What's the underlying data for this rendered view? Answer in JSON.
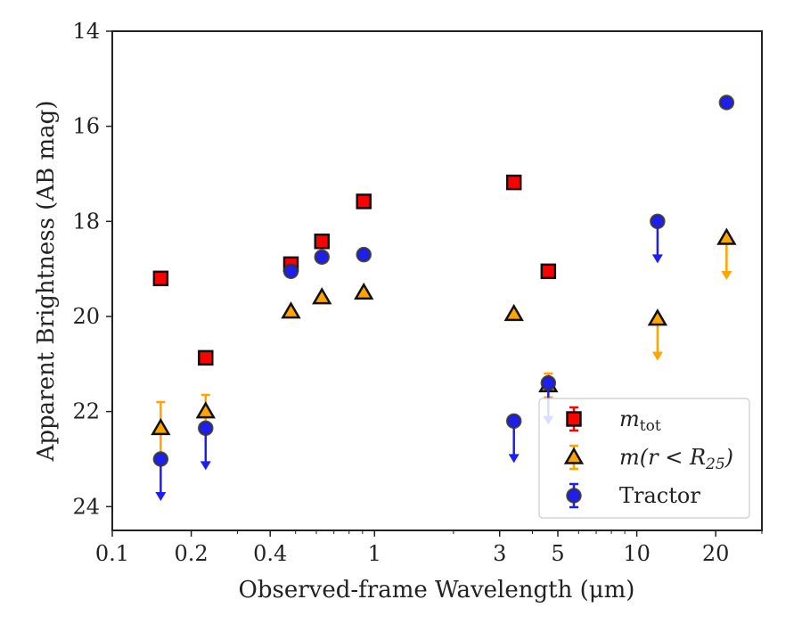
{
  "chart_data": {
    "type": "scatter",
    "title": "",
    "xlabel": "Observed-frame Wavelength (μm)",
    "ylabel": "Apparent Brightness (AB mag)",
    "xscale": "log",
    "xlim": [
      0.1,
      30
    ],
    "ylim": [
      24.5,
      14
    ],
    "y_inverted": true,
    "grid": false,
    "legend_position": "lower-right",
    "x_ticks": [
      {
        "value": 0.1,
        "label": "0.1"
      },
      {
        "value": 0.2,
        "label": "0.2"
      },
      {
        "value": 0.4,
        "label": "0.4"
      },
      {
        "value": 1,
        "label": "1"
      },
      {
        "value": 3,
        "label": "3"
      },
      {
        "value": 5,
        "label": "5"
      },
      {
        "value": 10,
        "label": "10"
      },
      {
        "value": 20,
        "label": "20"
      }
    ],
    "y_ticks": [
      {
        "value": 14,
        "label": "14"
      },
      {
        "value": 16,
        "label": "16"
      },
      {
        "value": 18,
        "label": "18"
      },
      {
        "value": 20,
        "label": "20"
      },
      {
        "value": 22,
        "label": "22"
      },
      {
        "value": 24,
        "label": "24"
      }
    ],
    "series": [
      {
        "name": "m_tot",
        "legend_label": "m",
        "legend_sub": "tot",
        "marker": "square",
        "color": "#ff0000",
        "points": [
          {
            "x": 0.153,
            "y": 19.2
          },
          {
            "x": 0.227,
            "y": 20.87
          },
          {
            "x": 0.48,
            "y": 18.9
          },
          {
            "x": 0.63,
            "y": 18.42
          },
          {
            "x": 0.91,
            "y": 17.58
          },
          {
            "x": 3.4,
            "y": 17.18
          },
          {
            "x": 4.6,
            "y": 19.05
          }
        ]
      },
      {
        "name": "m(r<R25)",
        "legend_label": "m(r < R",
        "legend_sub": "25",
        "legend_close": ")",
        "marker": "triangle",
        "color": "#ffa500",
        "points": [
          {
            "x": 0.153,
            "y": 22.35,
            "err": 0.55
          },
          {
            "x": 0.227,
            "y": 22.0,
            "err": 0.35
          },
          {
            "x": 0.48,
            "y": 19.9
          },
          {
            "x": 0.63,
            "y": 19.6
          },
          {
            "x": 0.91,
            "y": 19.5
          },
          {
            "x": 3.4,
            "y": 19.95
          },
          {
            "x": 4.6,
            "y": 21.45,
            "err": 0.25
          },
          {
            "x": 12.0,
            "y": 20.05,
            "upper_limit": true
          },
          {
            "x": 22.0,
            "y": 18.35,
            "upper_limit": true
          }
        ]
      },
      {
        "name": "Tractor",
        "legend_label": "Tractor",
        "marker": "circle",
        "color": "#1e1ef0",
        "points": [
          {
            "x": 0.153,
            "y": 23.0,
            "upper_limit": true
          },
          {
            "x": 0.227,
            "y": 22.35,
            "upper_limit": true
          },
          {
            "x": 0.48,
            "y": 19.05
          },
          {
            "x": 0.63,
            "y": 18.75
          },
          {
            "x": 0.91,
            "y": 18.7
          },
          {
            "x": 3.4,
            "y": 22.2,
            "upper_limit": true
          },
          {
            "x": 4.6,
            "y": 21.4,
            "upper_limit": true
          },
          {
            "x": 12.0,
            "y": 18.0,
            "upper_limit": true
          },
          {
            "x": 22.0,
            "y": 15.5
          }
        ]
      }
    ]
  }
}
